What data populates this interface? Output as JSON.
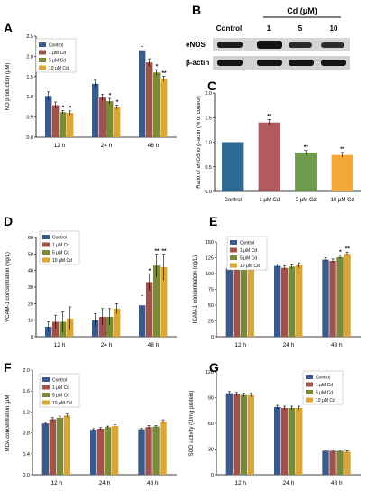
{
  "colors": {
    "Control": "#3b5a8c",
    "1 μM Cd": "#a0524d",
    "5 μM Cd": "#7a8a3a",
    "10 μM Cd": "#d9a63a",
    "bar_c": [
      "#2a6a94",
      "#b25a5e",
      "#6f9c4c",
      "#f3a838"
    ]
  },
  "legend_labels": [
    "Control",
    "1 μM Cd",
    "5 μM Cd",
    "10 μM Cd"
  ],
  "blot": {
    "letter": "B",
    "header": "Cd (μM)",
    "lanes": [
      "Control",
      "1",
      "5",
      "10"
    ],
    "rows": [
      "eNOS",
      "β-actin"
    ]
  },
  "chart_data": [
    {
      "id": "A",
      "letter": "A",
      "type": "bar",
      "ylabel": "NO production (μM)",
      "categories": [
        "12 h",
        "24 h",
        "48 h"
      ],
      "ylim": [
        0,
        2.5
      ],
      "yticks": [
        0,
        0.5,
        1.0,
        1.5,
        2.0,
        2.5
      ],
      "series": [
        {
          "name": "Control",
          "values": [
            1.02,
            1.32,
            2.15
          ],
          "err": [
            0.1,
            0.09,
            0.1
          ]
        },
        {
          "name": "1 μM Cd",
          "values": [
            0.79,
            0.98,
            1.85
          ],
          "err": [
            0.08,
            0.08,
            0.09
          ]
        },
        {
          "name": "5 μM Cd",
          "values": [
            0.62,
            0.89,
            1.6
          ],
          "err": [
            0.04,
            0.07,
            0.07
          ]
        },
        {
          "name": "10 μM Cd",
          "values": [
            0.6,
            0.74,
            1.45
          ],
          "err": [
            0.05,
            0.05,
            0.06
          ]
        }
      ],
      "marks": [
        [
          null,
          null,
          "*",
          "*"
        ],
        [
          null,
          null,
          "*",
          "*"
        ],
        [
          null,
          null,
          "*",
          "**"
        ]
      ]
    },
    {
      "id": "C",
      "letter": "C",
      "type": "bar",
      "ylabel": "Ratio of eNOS to β-actin (% of control)",
      "categories": [
        "Control",
        "1 μM Cd",
        "5 μM Cd",
        "10 μM Cd"
      ],
      "ylim": [
        0,
        2.0
      ],
      "yticks": [
        0.0,
        0.5,
        1.0,
        1.5,
        2.0
      ],
      "values": [
        1.0,
        1.4,
        0.79,
        0.74
      ],
      "err": [
        0,
        0.06,
        0.04,
        0.05
      ],
      "marks": [
        null,
        "**",
        "**",
        "**"
      ]
    },
    {
      "id": "D",
      "letter": "D",
      "type": "bar",
      "ylabel": "VCAM-1 concentration (ng/L)",
      "categories": [
        "12 h",
        "24 h",
        "48 h"
      ],
      "ylim": [
        0,
        60
      ],
      "yticks": [
        0,
        10,
        20,
        30,
        40,
        50,
        60
      ],
      "series": [
        {
          "name": "Control",
          "values": [
            6,
            10,
            19
          ],
          "err": [
            3,
            4,
            6
          ]
        },
        {
          "name": "1 μM Cd",
          "values": [
            9,
            12,
            33
          ],
          "err": [
            4,
            5,
            5
          ]
        },
        {
          "name": "5 μM Cd",
          "values": [
            9,
            12,
            43
          ],
          "err": [
            6,
            5,
            7
          ]
        },
        {
          "name": "10 μM Cd",
          "values": [
            11,
            17,
            42
          ],
          "err": [
            7,
            3,
            8
          ]
        }
      ],
      "marks": [
        [
          null,
          null,
          null,
          null
        ],
        [
          null,
          null,
          null,
          null
        ],
        [
          null,
          "*",
          "**",
          "**"
        ]
      ]
    },
    {
      "id": "E",
      "letter": "E",
      "type": "bar",
      "ylabel": "ICAM-1 concentration (ng/L)",
      "categories": [
        "12 h",
        "24 h",
        "48 h"
      ],
      "ylim": [
        0,
        150
      ],
      "yticks": [
        0,
        25,
        50,
        75,
        100,
        125,
        150
      ],
      "series": [
        {
          "name": "Control",
          "values": [
            108,
            112,
            122
          ],
          "err": [
            3,
            3,
            3
          ]
        },
        {
          "name": "1 μM Cd",
          "values": [
            107,
            109,
            120
          ],
          "err": [
            3,
            3,
            3
          ]
        },
        {
          "name": "5 μM Cd",
          "values": [
            108,
            111,
            126
          ],
          "err": [
            3,
            3,
            3
          ]
        },
        {
          "name": "10 μM Cd",
          "values": [
            110,
            113,
            131
          ],
          "err": [
            4,
            4,
            3
          ]
        }
      ],
      "marks": [
        [
          null,
          null,
          null,
          null
        ],
        [
          null,
          null,
          null,
          null
        ],
        [
          null,
          null,
          "*",
          "**"
        ]
      ]
    },
    {
      "id": "F",
      "letter": "F",
      "type": "bar",
      "ylabel": "MDA concentration (μM)",
      "categories": [
        "12 h",
        "24 h",
        "48 h"
      ],
      "ylim": [
        0,
        2.0
      ],
      "yticks": [
        0.0,
        0.4,
        0.8,
        1.2,
        1.6,
        2.0
      ],
      "series": [
        {
          "name": "Control",
          "values": [
            0.98,
            0.86,
            0.87
          ],
          "err": [
            0.02,
            0.02,
            0.02
          ]
        },
        {
          "name": "1 μM Cd",
          "values": [
            1.06,
            0.88,
            0.91
          ],
          "err": [
            0.03,
            0.02,
            0.03
          ]
        },
        {
          "name": "5 μM Cd",
          "values": [
            1.09,
            0.91,
            0.92
          ],
          "err": [
            0.03,
            0.02,
            0.02
          ]
        },
        {
          "name": "10 μM Cd",
          "values": [
            1.13,
            0.93,
            1.02
          ],
          "err": [
            0.03,
            0.03,
            0.03
          ]
        }
      ],
      "marks": [
        [
          null,
          null,
          null,
          null
        ],
        [
          null,
          null,
          null,
          null
        ],
        [
          null,
          null,
          null,
          null
        ]
      ]
    },
    {
      "id": "G",
      "letter": "G",
      "type": "bar",
      "ylabel": "SOD activity (U/mg protein)",
      "categories": [
        "12 h",
        "24 h",
        "48 h"
      ],
      "ylim": [
        0,
        120
      ],
      "yticks": [
        0,
        30,
        60,
        90,
        120
      ],
      "series": [
        {
          "name": "Control",
          "values": [
            95,
            79,
            28
          ],
          "err": [
            2,
            2,
            1
          ]
        },
        {
          "name": "1 μM Cd",
          "values": [
            94,
            78,
            28
          ],
          "err": [
            2,
            2,
            1
          ]
        },
        {
          "name": "5 μM Cd",
          "values": [
            93,
            78,
            28
          ],
          "err": [
            2,
            2,
            1
          ]
        },
        {
          "name": "10 μM Cd",
          "values": [
            93,
            78,
            27
          ],
          "err": [
            2,
            2,
            1
          ]
        }
      ],
      "marks": [
        [
          null,
          null,
          null,
          null
        ],
        [
          null,
          null,
          null,
          null
        ],
        [
          null,
          null,
          null,
          null
        ]
      ]
    }
  ]
}
